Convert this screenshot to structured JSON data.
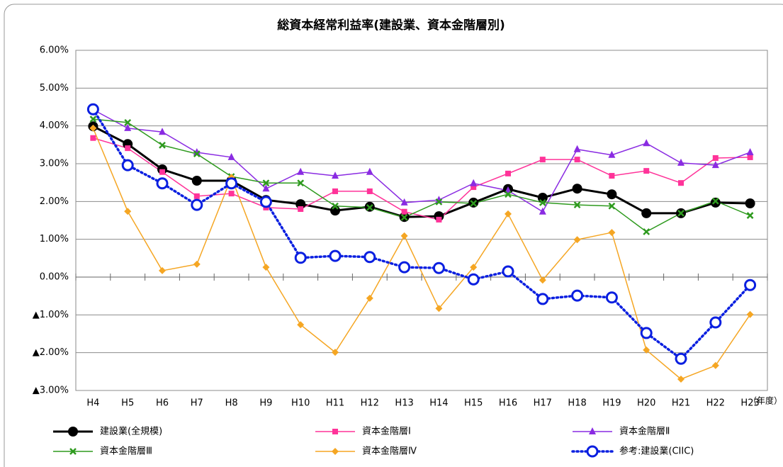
{
  "chart_data": {
    "type": "line",
    "title": "総資本経常利益率(建設業、資本金階層別)",
    "x_label": "（年度）",
    "categories": [
      "H4",
      "H5",
      "H6",
      "H7",
      "H8",
      "H9",
      "H10",
      "H11",
      "H12",
      "H13",
      "H14",
      "H15",
      "H16",
      "H17",
      "H18",
      "H19",
      "H20",
      "H21",
      "H22",
      "H23"
    ],
    "ylim": [
      -3,
      6
    ],
    "yticks": [
      {
        "value": -3,
        "label": "▲3.00%"
      },
      {
        "value": -2,
        "label": "▲2.00%"
      },
      {
        "value": -1,
        "label": "▲1.00%"
      },
      {
        "value": 0,
        "label": "0.00%"
      },
      {
        "value": 1,
        "label": "1.00%"
      },
      {
        "value": 2,
        "label": "2.00%"
      },
      {
        "value": 3,
        "label": "3.00%"
      },
      {
        "value": 4,
        "label": "4.00%"
      },
      {
        "value": 5,
        "label": "5.00%"
      },
      {
        "value": 6,
        "label": "6.00%"
      }
    ],
    "grid": true,
    "legend": "bottom",
    "series": [
      {
        "name": "建設業(全規模)",
        "color": "#000000",
        "marker": "circle",
        "dash": "solid",
        "values": [
          3.99,
          3.52,
          2.85,
          2.55,
          2.55,
          2.04,
          1.93,
          1.76,
          1.86,
          1.59,
          1.61,
          1.97,
          2.33,
          2.1,
          2.34,
          2.19,
          1.69,
          1.69,
          1.97,
          1.95
        ]
      },
      {
        "name": "資本金階層Ⅰ",
        "color": "#ff3399",
        "marker": "square",
        "dash": "solid",
        "values": [
          3.68,
          3.41,
          2.78,
          2.14,
          2.21,
          1.84,
          1.8,
          2.27,
          2.27,
          1.73,
          1.52,
          2.38,
          2.74,
          3.11,
          3.11,
          2.68,
          2.81,
          2.49,
          3.15,
          3.17
        ]
      },
      {
        "name": "資本金階層Ⅱ",
        "color": "#8a2be2",
        "marker": "triangle",
        "dash": "solid",
        "values": [
          4.43,
          3.94,
          3.84,
          3.3,
          3.17,
          2.34,
          2.78,
          2.68,
          2.78,
          1.97,
          2.04,
          2.48,
          2.29,
          1.73,
          3.38,
          3.23,
          3.54,
          3.02,
          2.96,
          3.3
        ]
      },
      {
        "name": "資本金階層Ⅲ",
        "color": "#2e9a1e",
        "marker": "x",
        "dash": "solid",
        "values": [
          4.18,
          4.09,
          3.49,
          3.26,
          2.66,
          2.49,
          2.49,
          1.88,
          1.84,
          1.58,
          1.99,
          1.95,
          2.19,
          1.97,
          1.91,
          1.88,
          1.2,
          1.69,
          2.01,
          1.63
        ]
      },
      {
        "name": "資本金階層Ⅳ",
        "color": "#f5a623",
        "marker": "diamond",
        "dash": "solid",
        "values": [
          3.94,
          1.74,
          0.17,
          0.34,
          2.64,
          0.26,
          -1.26,
          -1.99,
          -0.56,
          1.09,
          -0.83,
          0.26,
          1.67,
          -0.08,
          0.99,
          1.18,
          -1.93,
          -2.7,
          -2.34,
          -0.99
        ]
      },
      {
        "name": "参考:建設業(CIIC)",
        "color": "#0a1fe0",
        "marker": "open-circle",
        "dash": "dotted",
        "values": [
          4.44,
          2.96,
          2.48,
          1.91,
          2.48,
          1.99,
          0.51,
          0.56,
          0.53,
          0.26,
          0.24,
          -0.06,
          0.15,
          -0.58,
          -0.49,
          -0.54,
          -1.48,
          -2.16,
          -1.2,
          -0.21
        ]
      }
    ]
  }
}
